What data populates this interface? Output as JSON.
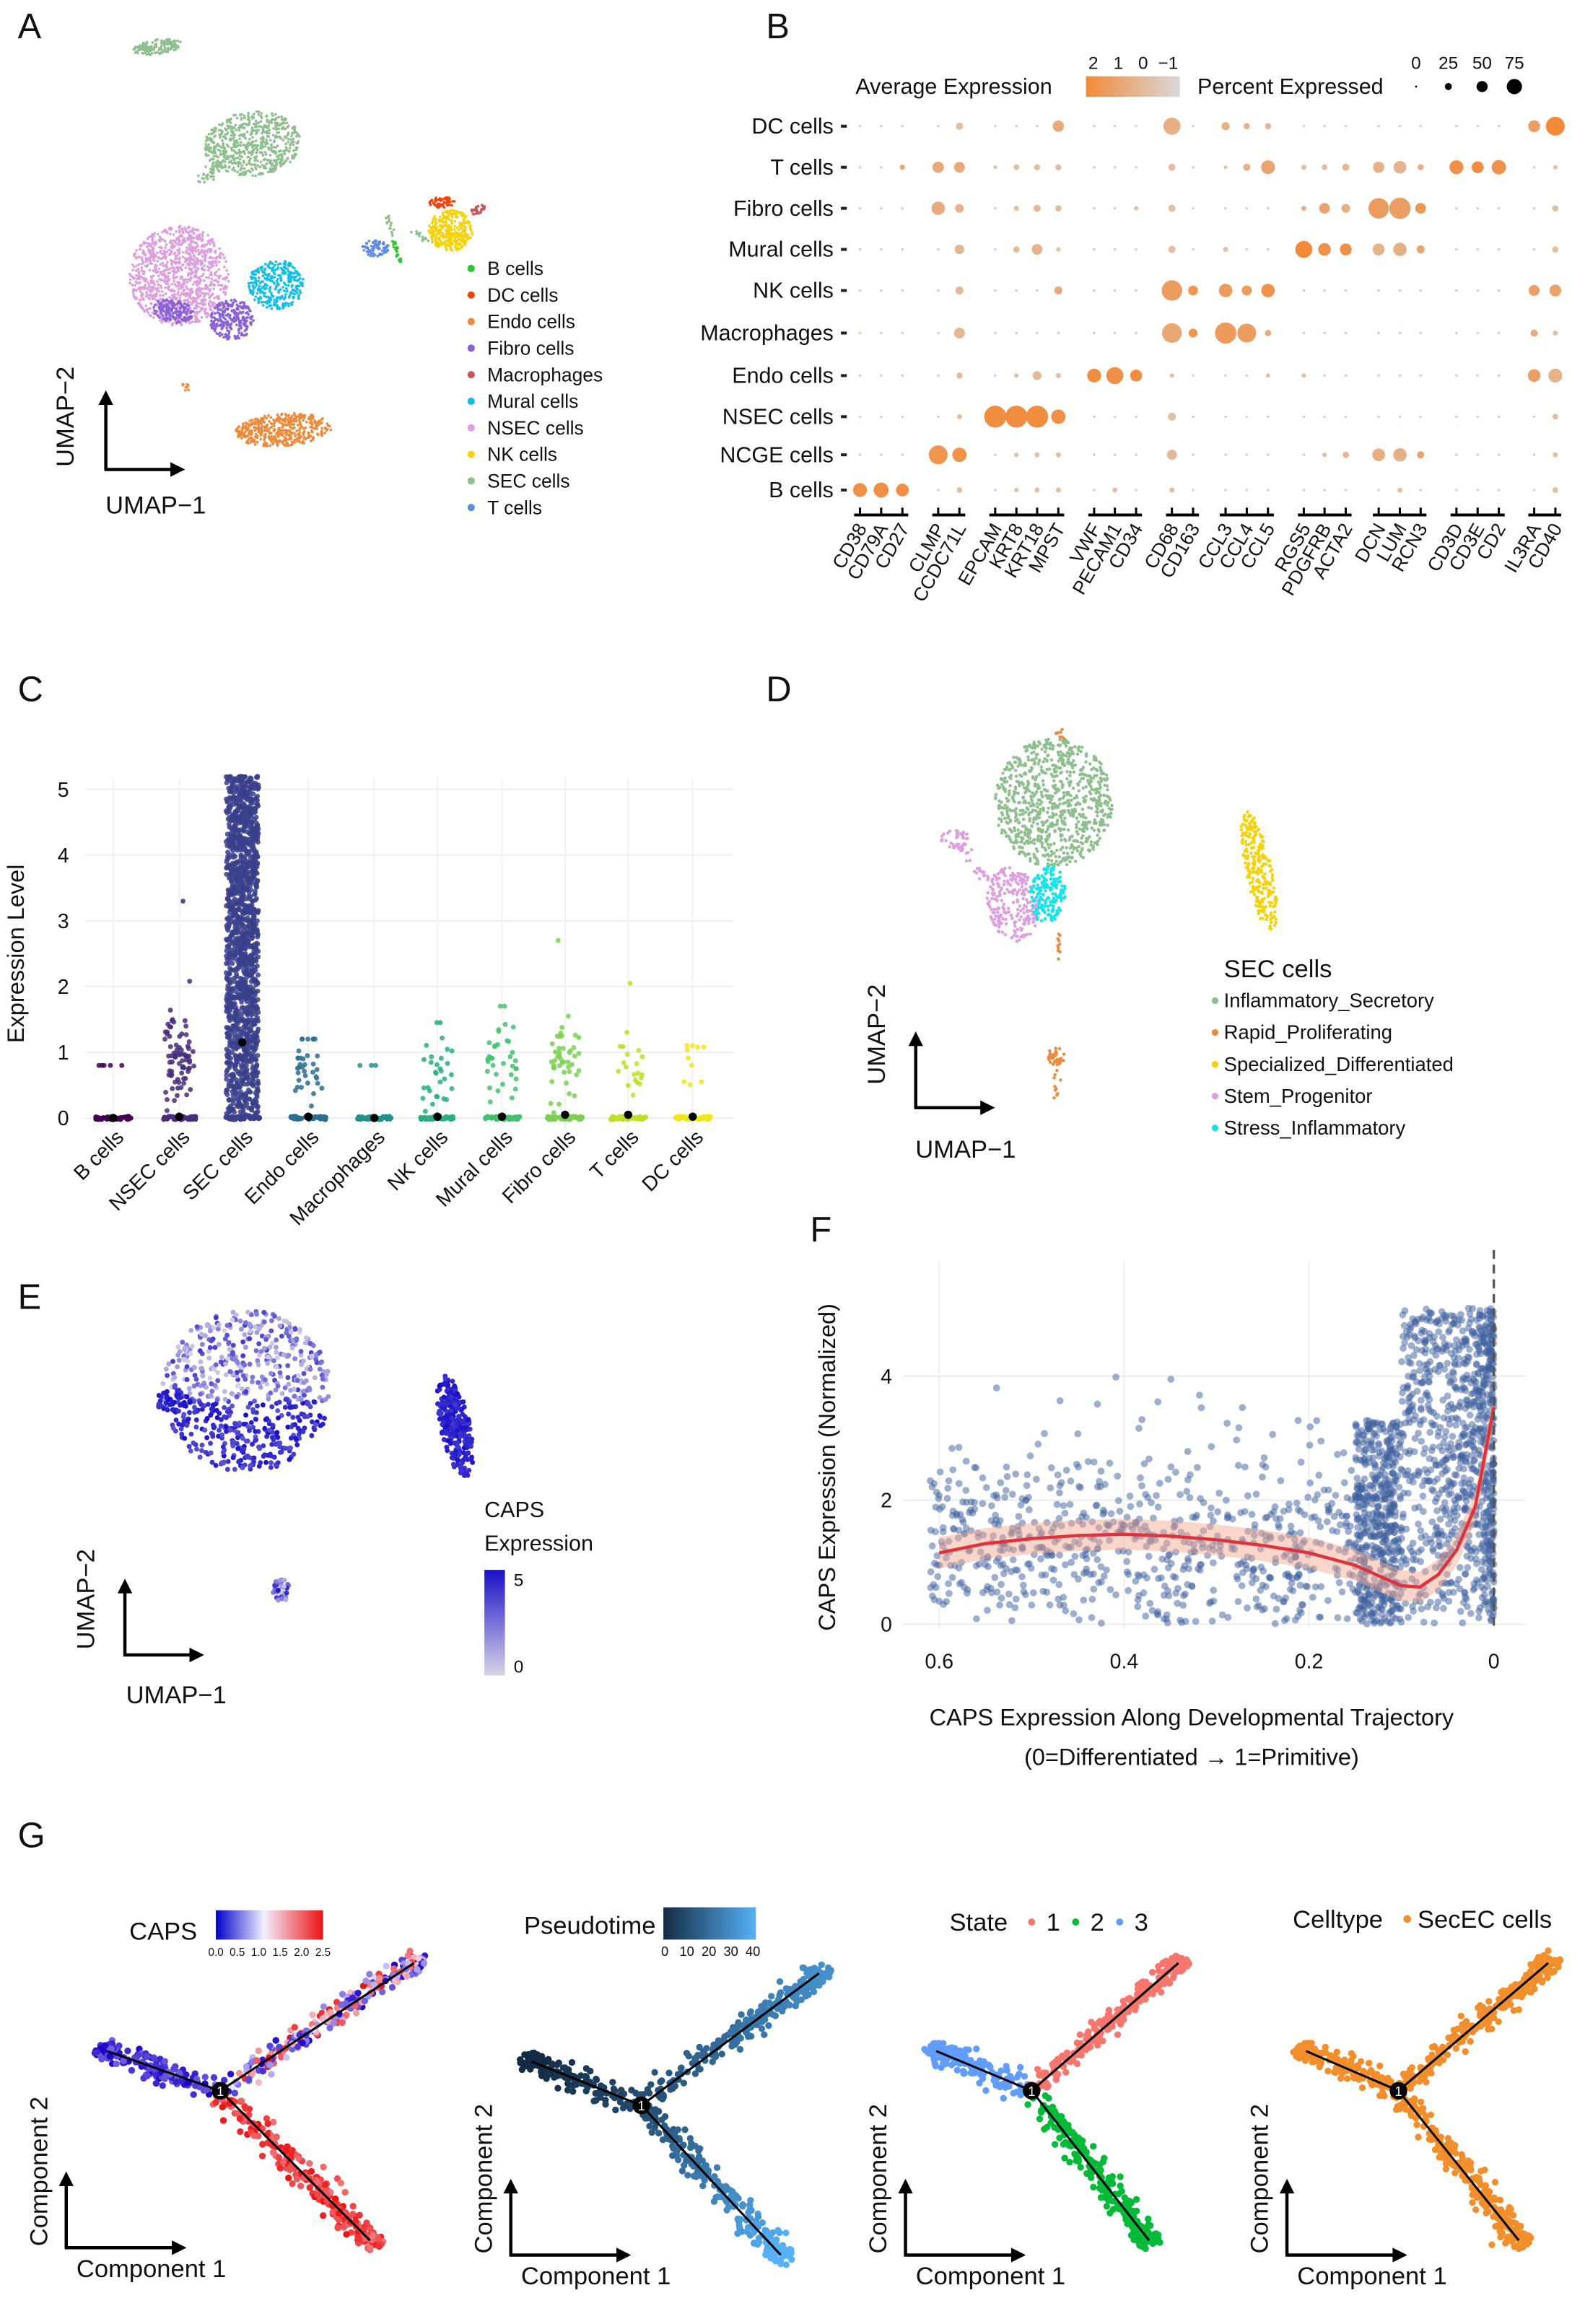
{
  "panel_labels": [
    "A",
    "B",
    "C",
    "D",
    "E",
    "F",
    "G"
  ],
  "chart_data": [
    {
      "panel": "A",
      "type": "scatter",
      "xlabel": "UMAP−1",
      "ylabel": "UMAP−2",
      "legend": [
        "B cells",
        "DC cells",
        "Endo cells",
        "Fibro cells",
        "Macrophages",
        "Mural cells",
        "NSEC cells",
        "NK cells",
        "SEC cells",
        "T cells"
      ],
      "colors": [
        "#2ec52e",
        "#f0440f",
        "#ee8a3c",
        "#8a62d6",
        "#c9545a",
        "#13bfe6",
        "#dca0de",
        "#f5d20a",
        "#8fbf8f",
        "#5f8de0"
      ],
      "legend_position": "bottom-right"
    },
    {
      "panel": "B",
      "type": "dotplot",
      "genes": [
        "CD38",
        "CD79A",
        "CD27",
        "CLMP",
        "CCDC71L",
        "EPCAM",
        "KRT8",
        "KRT18",
        "MPST",
        "VWF",
        "PECAM1",
        "CD34",
        "CD68",
        "CD163",
        "CCL3",
        "CCL4",
        "CCL5",
        "RGS5",
        "PDGFRB",
        "ACTA2",
        "DCN",
        "LUM",
        "RCN3",
        "CD3D",
        "CD3E",
        "CD2",
        "IL3RA",
        "CD40"
      ],
      "gene_group_sizes": [
        3,
        2,
        4,
        3,
        2,
        3,
        3,
        3,
        3,
        2
      ],
      "cell_types": [
        "DC cells",
        "T cells",
        "Fibro cells",
        "Mural cells",
        "NK cells",
        "Macrophages",
        "Endo cells",
        "NSEC cells",
        "NCGE cells",
        "B cells"
      ],
      "legend": {
        "color_title": "Average Expression",
        "color_ticks": [
          "2",
          "1",
          "0",
          "−1"
        ],
        "size_title": "Percent Expressed",
        "size_ticks": [
          "0",
          "25",
          "50",
          "75"
        ],
        "color_high": "#f28a3a",
        "color_low": "#d9d9d9"
      },
      "default_value": [
        1,
        -0.5
      ],
      "values": {
        "DC cells": {
          "CCDC71L": [
            8,
            0
          ],
          "MPST": [
            20,
            0.8
          ],
          "CD68": [
            45,
            0.6
          ],
          "CCL3": [
            10,
            0.6
          ],
          "CCL4": [
            6,
            0.4
          ],
          "CCL5": [
            6,
            0.3
          ],
          "IL3RA": [
            22,
            1.2
          ],
          "CD40": [
            55,
            2
          ]
        },
        "T cells": {
          "CD27": [
            4,
            1
          ],
          "CLMP": [
            20,
            0.8
          ],
          "CCDC71L": [
            18,
            0.8
          ],
          "EPCAM": [
            2,
            0
          ],
          "KRT8": [
            5,
            0
          ],
          "KRT18": [
            6,
            0
          ],
          "MPST": [
            6,
            0
          ],
          "CD68": [
            8,
            0
          ],
          "CCL3": [
            2,
            0
          ],
          "CCL4": [
            8,
            0.5
          ],
          "CCL5": [
            30,
            1
          ],
          "RGS5": [
            4,
            0
          ],
          "PDGFRB": [
            5,
            0
          ],
          "ACTA2": [
            8,
            0.3
          ],
          "DCN": [
            20,
            0.5
          ],
          "LUM": [
            25,
            0.5
          ],
          "RCN3": [
            6,
            0.5
          ],
          "CD3D": [
            30,
            1.8
          ],
          "CD3E": [
            22,
            1.9
          ],
          "CD2": [
            32,
            1.7
          ],
          "CD40": [
            3,
            0
          ]
        },
        "Fibro cells": {
          "CLMP": [
            28,
            0.7
          ],
          "CCDC71L": [
            12,
            0.4
          ],
          "KRT8": [
            4,
            0
          ],
          "KRT18": [
            8,
            0.2
          ],
          "MPST": [
            6,
            0.2
          ],
          "CD34": [
            3,
            0
          ],
          "CD68": [
            8,
            0
          ],
          "RGS5": [
            4,
            0.5
          ],
          "PDGFRB": [
            18,
            1
          ],
          "ACTA2": [
            12,
            0.6
          ],
          "DCN": [
            65,
            1.3
          ],
          "LUM": [
            70,
            1.2
          ],
          "RCN3": [
            18,
            1.5
          ],
          "CD40": [
            6,
            0
          ]
        },
        "Mural cells": {
          "CCDC71L": [
            14,
            0.3
          ],
          "KRT8": [
            6,
            0.2
          ],
          "KRT18": [
            18,
            0.4
          ],
          "MPST": [
            3,
            0
          ],
          "CD68": [
            8,
            0
          ],
          "CCL3": [
            4,
            0
          ],
          "RGS5": [
            45,
            2
          ],
          "PDGFRB": [
            25,
            1.7
          ],
          "ACTA2": [
            22,
            1.8
          ],
          "DCN": [
            22,
            0.5
          ],
          "LUM": [
            28,
            0.6
          ],
          "RCN3": [
            10,
            1
          ],
          "CD40": [
            6,
            0
          ]
        },
        "NK cells": {
          "CCDC71L": [
            10,
            0.2
          ],
          "MPST": [
            10,
            0.8
          ],
          "CD68": [
            65,
            1.3
          ],
          "CD163": [
            15,
            1.5
          ],
          "CCL3": [
            28,
            1.3
          ],
          "CCL4": [
            16,
            1.3
          ],
          "CCL5": [
            28,
            1.7
          ],
          "IL3RA": [
            18,
            1.2
          ],
          "CD40": [
            22,
            1
          ]
        },
        "Macrophages": {
          "CCDC71L": [
            18,
            0.3
          ],
          "CD68": [
            60,
            0.9
          ],
          "CD163": [
            12,
            1.6
          ],
          "CCL3": [
            70,
            1.4
          ],
          "CCL4": [
            55,
            1.3
          ],
          "CCL5": [
            6,
            0.8
          ],
          "IL3RA": [
            8,
            0.8
          ],
          "CD40": [
            4,
            0
          ]
        },
        "Endo cells": {
          "CCDC71L": [
            6,
            0
          ],
          "KRT8": [
            3,
            0
          ],
          "KRT18": [
            12,
            0.2
          ],
          "MPST": [
            4,
            0
          ],
          "VWF": [
            30,
            1.9
          ],
          "PECAM1": [
            45,
            1.8
          ],
          "CD34": [
            22,
            1.9
          ],
          "CD68": [
            3,
            0
          ],
          "CCL5": [
            3,
            0
          ],
          "RGS5": [
            3,
            0
          ],
          "IL3RA": [
            25,
            1.2
          ],
          "CD40": [
            30,
            0.5
          ]
        },
        "NSEC cells": {
          "CCDC71L": [
            4,
            0
          ],
          "EPCAM": [
            75,
            1.9
          ],
          "KRT8": [
            75,
            1.9
          ],
          "KRT18": [
            75,
            1.9
          ],
          "MPST": [
            32,
            1.8
          ],
          "CD68": [
            10,
            0
          ],
          "CD40": [
            5,
            0
          ]
        },
        "NCGE cells": {
          "CLMP": [
            55,
            1.6
          ],
          "CCDC71L": [
            32,
            1.7
          ],
          "KRT8": [
            3,
            0
          ],
          "KRT18": [
            4,
            0
          ],
          "MPST": [
            4,
            0
          ],
          "CD68": [
            16,
            0.2
          ],
          "PDGFRB": [
            3,
            0
          ],
          "ACTA2": [
            6,
            0.3
          ],
          "DCN": [
            25,
            0.6
          ],
          "LUM": [
            28,
            0.6
          ],
          "RCN3": [
            8,
            1
          ],
          "CD40": [
            4,
            0
          ]
        },
        "B cells": {
          "CD38": [
            30,
            1.8
          ],
          "CD79A": [
            35,
            1.8
          ],
          "CD27": [
            25,
            1.8
          ],
          "CCDC71L": [
            5,
            0
          ],
          "KRT8": [
            3,
            0
          ],
          "KRT18": [
            4,
            0
          ],
          "MPST": [
            4,
            0
          ],
          "PECAM1": [
            4,
            0
          ],
          "CD68": [
            4,
            0
          ],
          "LUM": [
            4,
            0
          ],
          "CD40": [
            5,
            0
          ]
        }
      }
    },
    {
      "panel": "C",
      "type": "strip",
      "ylabel": "Expression Level",
      "categories": [
        "B cells",
        "NSEC cells",
        "SEC cells",
        "Endo cells",
        "Macrophages",
        "NK cells",
        "Mural cells",
        "Fibro cells",
        "T cells",
        "DC cells"
      ],
      "colors": [
        "#440154",
        "#472d7b",
        "#3b3f8c",
        "#2c6e8e",
        "#21918c",
        "#28ae80",
        "#44bf70",
        "#7ad151",
        "#bddf26",
        "#f1e51d"
      ],
      "means": [
        0.0,
        0.02,
        1.15,
        0.02,
        0.0,
        0.02,
        0.02,
        0.05,
        0.05,
        0.02
      ],
      "max_values": [
        0.8,
        3.3,
        5.2,
        1.2,
        0.8,
        1.45,
        1.7,
        2.7,
        2.05,
        1.1
      ],
      "nonzero_counts": [
        5,
        80,
        1500,
        35,
        3,
        30,
        35,
        45,
        20,
        10
      ],
      "yticks": [
        "0",
        "1",
        "2",
        "3",
        "4",
        "5"
      ],
      "ylim": [
        0,
        5.3
      ],
      "grid": true
    },
    {
      "panel": "D",
      "type": "scatter",
      "xlabel": "UMAP−1",
      "ylabel": "UMAP−2",
      "legend_title": "SEC cells",
      "legend": [
        "Inflammatory_Secretory",
        "Rapid_Proliferating",
        "Specialized_Differentiated",
        "Stem_Progenitor",
        "Stress_Inflammatory"
      ],
      "colors": [
        "#8fbf8f",
        "#ee8a3c",
        "#f5d20a",
        "#dca0de",
        "#16e3ea"
      ],
      "legend_position": "bottom-right"
    },
    {
      "panel": "E",
      "type": "scatter",
      "xlabel": "UMAP−1",
      "ylabel": "UMAP−2",
      "legend_title": [
        "CAPS",
        "Expression"
      ],
      "scale_ticks": [
        "5",
        "0"
      ],
      "value_range": [
        0,
        5
      ],
      "color_high": "#1a0fc8",
      "color_low": "#d8d4e6"
    },
    {
      "panel": "F",
      "type": "scatter",
      "ylabel": "CAPS Expression (Normalized)",
      "xlabel": [
        "CAPS Expression Along Developmental Trajectory",
        "(0=Differentiated → 1=Primitive)"
      ],
      "xticks": [
        "0.6",
        "0.4",
        "0.2",
        "0"
      ],
      "xtick_values": [
        0.6,
        0.4,
        0.2,
        0
      ],
      "yticks": [
        "0",
        "2",
        "4"
      ],
      "ytick_values": [
        0,
        2,
        4
      ],
      "xlim": [
        0.65,
        0
      ],
      "ylim": [
        -0.2,
        5.3
      ],
      "point_color": "#3d5f9e",
      "curve_color": "#e0323c",
      "curve": {
        "x": [
          0.6,
          0.55,
          0.5,
          0.45,
          0.4,
          0.35,
          0.3,
          0.25,
          0.2,
          0.15,
          0.12,
          0.1,
          0.08,
          0.06,
          0.04,
          0.02,
          0.0
        ],
        "y": [
          1.15,
          1.3,
          1.38,
          1.43,
          1.45,
          1.42,
          1.36,
          1.27,
          1.15,
          0.95,
          0.75,
          0.62,
          0.6,
          0.8,
          1.2,
          1.9,
          3.5
        ]
      },
      "reference_line_x": 0,
      "grid": true
    },
    {
      "panel": "G",
      "type": "trajectory",
      "xlabel": "Component 1",
      "ylabel": "Component 2",
      "node_label": "1",
      "subplots": [
        {
          "legend_title": "CAPS",
          "ticks": [
            "0.0",
            "0.5",
            "1.0",
            "1.5",
            "2.0",
            "2.5"
          ],
          "range": [
            0,
            2.5
          ]
        },
        {
          "legend_title": "Pseudotime",
          "ticks": [
            "0",
            "10",
            "20",
            "30",
            "40"
          ],
          "range": [
            0,
            40
          ]
        },
        {
          "legend_title": "State",
          "items": [
            "1",
            "2",
            "3"
          ],
          "colors": [
            "#f8766d",
            "#00ba38",
            "#619cff"
          ]
        },
        {
          "legend_title": "Celltype",
          "items": [
            "SecEC cells"
          ],
          "colors": [
            "#f28e2b"
          ]
        }
      ]
    }
  ]
}
